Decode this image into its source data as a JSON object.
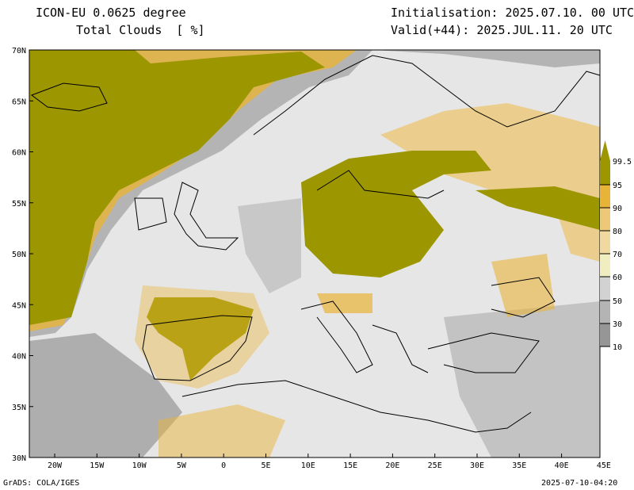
{
  "header": {
    "model": "ICON-EU 0.0625 degree",
    "variable": "Total Clouds  [ %]",
    "init": "Initialisation: 2025.07.10. 00 UTC",
    "valid": "Valid(+44): 2025.JUL.11. 20 UTC"
  },
  "footer": {
    "left": "GrADS: COLA/IGES",
    "right": "2025-07-10-04:20"
  },
  "lat_labels": [
    "70N",
    "65N",
    "60N",
    "55N",
    "50N",
    "45N",
    "40N",
    "35N",
    "30N"
  ],
  "lon_labels": [
    "20W",
    "15W",
    "10W",
    "5W",
    "0",
    "5E",
    "10E",
    "15E",
    "20E",
    "25E",
    "30E",
    "35E",
    "40E",
    "45E"
  ],
  "legend": {
    "labels": [
      "99.5",
      "95",
      "90",
      "80",
      "70",
      "60",
      "50",
      "30",
      "10"
    ],
    "colors": [
      "#9c9600",
      "#e8b438",
      "#ecc878",
      "#f0d8a0",
      "#f0eebe",
      "#d2d2d2",
      "#b4b4b4",
      "#969696",
      "#5a5a5a"
    ]
  },
  "colors": {
    "background": "#e6e6e6",
    "coast": "#000000"
  }
}
